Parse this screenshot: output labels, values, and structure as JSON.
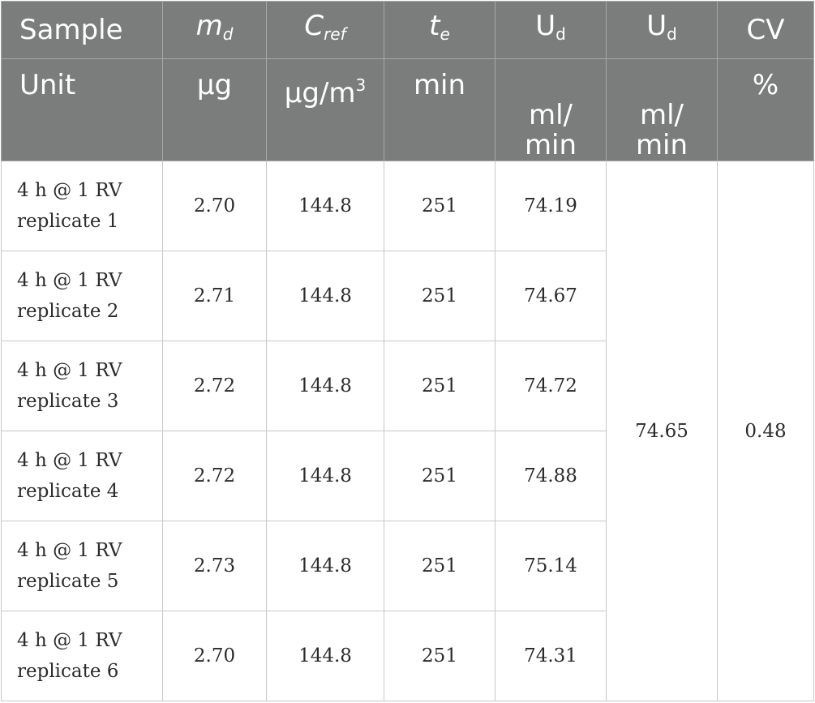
{
  "table": {
    "header_row_1": [
      {
        "base": "Sample",
        "sub": "",
        "italic": false
      },
      {
        "base": "m",
        "sub": "d",
        "italic": true
      },
      {
        "base": "C",
        "sub": "ref",
        "italic": true
      },
      {
        "base": "t",
        "sub": "e",
        "italic": true
      },
      {
        "base": "U",
        "sub": "d",
        "italic": false
      },
      {
        "base": "U",
        "sub": "d",
        "italic": false
      },
      {
        "base": "CV",
        "sub": "",
        "italic": false
      }
    ],
    "header_row_2": {
      "unit_label": "Unit",
      "md_unit": "µg",
      "cref_unit_base": "µg/m",
      "cref_unit_sup": "3",
      "te_unit": "min",
      "ud_unit_1": "ml/\nmin",
      "ud_unit_2": "ml/\nmin",
      "cv_unit": "%"
    },
    "rows": [
      {
        "sample_line1": "4 h @ 1 RV",
        "sample_line2": "replicate 1",
        "md": "2.70",
        "cref": "144.8",
        "te": "251",
        "ud": "74.19"
      },
      {
        "sample_line1": "4 h @ 1 RV",
        "sample_line2": "replicate 2",
        "md": "2.71",
        "cref": "144.8",
        "te": "251",
        "ud": "74.67"
      },
      {
        "sample_line1": "4 h @ 1 RV",
        "sample_line2": "replicate 3",
        "md": "2.72",
        "cref": "144.8",
        "te": "251",
        "ud": "74.72"
      },
      {
        "sample_line1": "4 h @ 1 RV",
        "sample_line2": "replicate 4",
        "md": "2.72",
        "cref": "144.8",
        "te": "251",
        "ud": "74.88"
      },
      {
        "sample_line1": "4 h @ 1 RV",
        "sample_line2": "replicate 5",
        "md": "2.73",
        "cref": "144.8",
        "te": "251",
        "ud": "75.14"
      },
      {
        "sample_line1": "4 h @ 1 RV",
        "sample_line2": "replicate 6",
        "md": "2.70",
        "cref": "144.8",
        "te": "251",
        "ud": "74.31"
      }
    ],
    "ud_mean": "74.65",
    "cv_value": "0.48"
  }
}
